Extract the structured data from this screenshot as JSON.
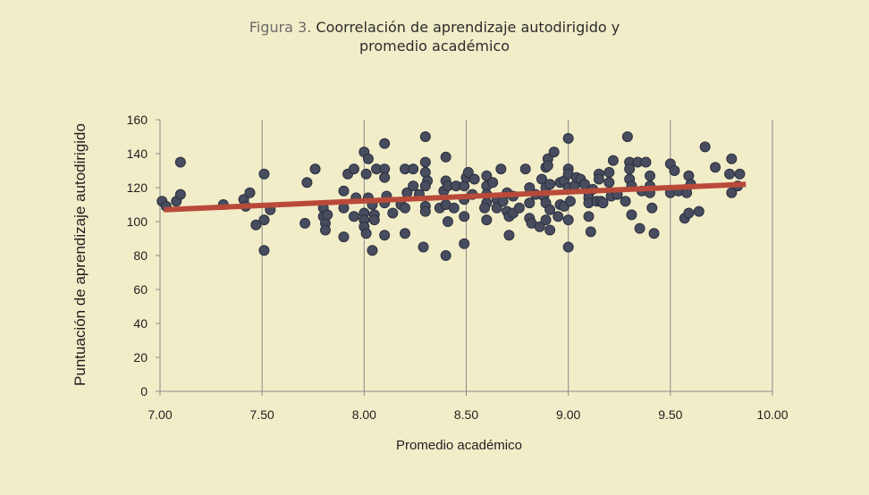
{
  "title": {
    "prefix": "Figura 3.",
    "line1": "Coorrelación de aprendizaje autodirigido y",
    "line2": "promedio académico"
  },
  "chart_data": {
    "type": "scatter",
    "title": "Figura 3. Coorrelación de aprendizaje autodirigido y promedio académico",
    "xlabel": "Promedio académico",
    "ylabel": "Puntuación de aprendizaje autodirigido",
    "xlim": [
      7.0,
      10.0
    ],
    "ylim": [
      0,
      160
    ],
    "xticks": [
      "7.00",
      "7.50",
      "8.00",
      "8.50",
      "9.00",
      "9.50",
      "10.00"
    ],
    "yticks": [
      "0",
      "20",
      "40",
      "60",
      "80",
      "100",
      "120",
      "140",
      "160"
    ],
    "grid": "vertical",
    "colors": {
      "points": "#474d5e",
      "point_edge": "#2c3040",
      "trendline": "#b94a3a",
      "axis": "#888888",
      "background": "#f2edc9"
    },
    "trendline": {
      "x": [
        7.02,
        9.87
      ],
      "y": [
        107,
        122
      ]
    },
    "points": [
      [
        7.01,
        112
      ],
      [
        7.03,
        109
      ],
      [
        7.08,
        112
      ],
      [
        7.1,
        116
      ],
      [
        7.1,
        135
      ],
      [
        7.31,
        110
      ],
      [
        7.41,
        113
      ],
      [
        7.42,
        109
      ],
      [
        7.44,
        117
      ],
      [
        7.47,
        98
      ],
      [
        7.51,
        101
      ],
      [
        7.51,
        128
      ],
      [
        7.51,
        83
      ],
      [
        7.54,
        107
      ],
      [
        7.71,
        99
      ],
      [
        7.72,
        123
      ],
      [
        7.76,
        131
      ],
      [
        7.8,
        108
      ],
      [
        7.8,
        103
      ],
      [
        7.81,
        99
      ],
      [
        7.81,
        95
      ],
      [
        7.82,
        104
      ],
      [
        7.9,
        118
      ],
      [
        7.9,
        108
      ],
      [
        7.9,
        91
      ],
      [
        7.92,
        128
      ],
      [
        7.95,
        131
      ],
      [
        7.96,
        114
      ],
      [
        7.95,
        103
      ],
      [
        8.0,
        141
      ],
      [
        8.01,
        128
      ],
      [
        8.0,
        105
      ],
      [
        8.0,
        101
      ],
      [
        8.0,
        97
      ],
      [
        8.01,
        93
      ],
      [
        8.02,
        114
      ],
      [
        8.02,
        137
      ],
      [
        8.04,
        110
      ],
      [
        8.04,
        83
      ],
      [
        8.05,
        104
      ],
      [
        8.06,
        131
      ],
      [
        8.05,
        101
      ],
      [
        8.1,
        146
      ],
      [
        8.1,
        131
      ],
      [
        8.1,
        126
      ],
      [
        8.11,
        115
      ],
      [
        8.1,
        111
      ],
      [
        8.1,
        92
      ],
      [
        8.14,
        105
      ],
      [
        8.18,
        110
      ],
      [
        8.2,
        131
      ],
      [
        8.21,
        117
      ],
      [
        8.2,
        108
      ],
      [
        8.2,
        93
      ],
      [
        8.24,
        131
      ],
      [
        8.24,
        121
      ],
      [
        8.27,
        116
      ],
      [
        8.29,
        85
      ],
      [
        8.3,
        150
      ],
      [
        8.3,
        135
      ],
      [
        8.3,
        129
      ],
      [
        8.31,
        124
      ],
      [
        8.3,
        121
      ],
      [
        8.3,
        109
      ],
      [
        8.3,
        106
      ],
      [
        8.37,
        108
      ],
      [
        8.4,
        138
      ],
      [
        8.39,
        118
      ],
      [
        8.4,
        124
      ],
      [
        8.41,
        121
      ],
      [
        8.4,
        110
      ],
      [
        8.41,
        100
      ],
      [
        8.4,
        80
      ],
      [
        8.45,
        121
      ],
      [
        8.44,
        108
      ],
      [
        8.49,
        113
      ],
      [
        8.49,
        121
      ],
      [
        8.5,
        126
      ],
      [
        8.51,
        129
      ],
      [
        8.49,
        103
      ],
      [
        8.49,
        87
      ],
      [
        8.53,
        116
      ],
      [
        8.54,
        125
      ],
      [
        8.6,
        127
      ],
      [
        8.6,
        121
      ],
      [
        8.6,
        116
      ],
      [
        8.6,
        111
      ],
      [
        8.59,
        108
      ],
      [
        8.6,
        101
      ],
      [
        8.63,
        123
      ],
      [
        8.65,
        113
      ],
      [
        8.65,
        108
      ],
      [
        8.67,
        131
      ],
      [
        8.68,
        112
      ],
      [
        8.7,
        117
      ],
      [
        8.7,
        106
      ],
      [
        8.71,
        103
      ],
      [
        8.71,
        92
      ],
      [
        8.73,
        105
      ],
      [
        8.73,
        115
      ],
      [
        8.76,
        108
      ],
      [
        8.79,
        131
      ],
      [
        8.81,
        120
      ],
      [
        8.81,
        111
      ],
      [
        8.81,
        102
      ],
      [
        8.82,
        99
      ],
      [
        8.84,
        116
      ],
      [
        8.86,
        97
      ],
      [
        8.87,
        125
      ],
      [
        8.88,
        115
      ],
      [
        8.89,
        132
      ],
      [
        8.89,
        120
      ],
      [
        8.89,
        111
      ],
      [
        8.89,
        101
      ],
      [
        8.9,
        137
      ],
      [
        8.9,
        133
      ],
      [
        8.91,
        122
      ],
      [
        8.91,
        107
      ],
      [
        8.91,
        95
      ],
      [
        8.93,
        141
      ],
      [
        8.95,
        103
      ],
      [
        8.96,
        123
      ],
      [
        8.96,
        110
      ],
      [
        8.98,
        124
      ],
      [
        8.98,
        109
      ],
      [
        9.0,
        149
      ],
      [
        9.0,
        131
      ],
      [
        9.0,
        128
      ],
      [
        9.0,
        120
      ],
      [
        9.0,
        101
      ],
      [
        9.0,
        85
      ],
      [
        9.01,
        112
      ],
      [
        9.03,
        121
      ],
      [
        9.04,
        126
      ],
      [
        9.06,
        125
      ],
      [
        9.08,
        122
      ],
      [
        9.1,
        117
      ],
      [
        9.1,
        114
      ],
      [
        9.1,
        111
      ],
      [
        9.1,
        103
      ],
      [
        9.11,
        94
      ],
      [
        9.12,
        119
      ],
      [
        9.14,
        112
      ],
      [
        9.15,
        128
      ],
      [
        9.15,
        125
      ],
      [
        9.16,
        112
      ],
      [
        9.17,
        111
      ],
      [
        9.2,
        129
      ],
      [
        9.2,
        123
      ],
      [
        9.21,
        115
      ],
      [
        9.22,
        136
      ],
      [
        9.24,
        116
      ],
      [
        9.28,
        112
      ],
      [
        9.29,
        150
      ],
      [
        9.3,
        135
      ],
      [
        9.3,
        131
      ],
      [
        9.3,
        125
      ],
      [
        9.31,
        121
      ],
      [
        9.31,
        104
      ],
      [
        9.34,
        135
      ],
      [
        9.35,
        96
      ],
      [
        9.36,
        118
      ],
      [
        9.38,
        135
      ],
      [
        9.4,
        127
      ],
      [
        9.4,
        121
      ],
      [
        9.4,
        117
      ],
      [
        9.41,
        108
      ],
      [
        9.42,
        93
      ],
      [
        9.5,
        134
      ],
      [
        9.5,
        117
      ],
      [
        9.52,
        130
      ],
      [
        9.54,
        118
      ],
      [
        9.57,
        102
      ],
      [
        9.58,
        117
      ],
      [
        9.59,
        105
      ],
      [
        9.59,
        127
      ],
      [
        9.6,
        122
      ],
      [
        9.64,
        106
      ],
      [
        9.67,
        144
      ],
      [
        9.72,
        132
      ],
      [
        9.79,
        128
      ],
      [
        9.8,
        137
      ],
      [
        9.8,
        117
      ],
      [
        9.83,
        121
      ],
      [
        9.84,
        128
      ]
    ]
  }
}
